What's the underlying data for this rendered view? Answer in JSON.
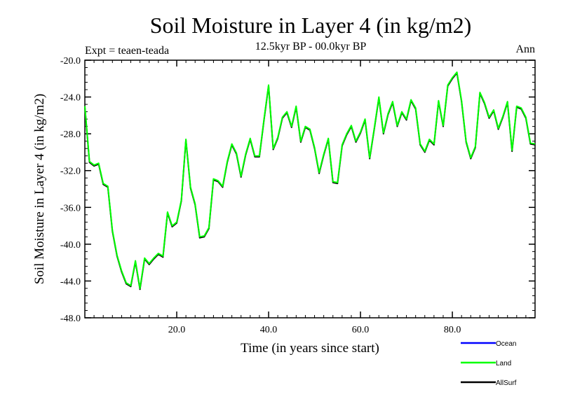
{
  "chart_data": {
    "type": "line",
    "title": "Soil Moisture in Layer 4 (in kg/m2)",
    "subtitle": "12.5kyr BP - 00.0kyr BP",
    "experiment": "Expt = teaen-teada",
    "season": "Ann",
    "xlabel": "Time (in years since start)",
    "ylabel": "Soil Moisture in Layer 4 (in kg/m2)",
    "xlim": [
      0,
      98
    ],
    "ylim": [
      -48,
      -20
    ],
    "xticks": [
      20,
      40,
      60,
      80
    ],
    "xtick_labels": [
      "20.0",
      "40.0",
      "60.0",
      "80.0"
    ],
    "yticks": [
      -20,
      -24,
      -28,
      -32,
      -36,
      -40,
      -44,
      -48
    ],
    "ytick_labels": [
      "-20.0",
      "-24.0",
      "-28.0",
      "-32.0",
      "-36.0",
      "-40.0",
      "-44.0",
      "-48.0"
    ],
    "legend": [
      {
        "name": "Ocean",
        "color": "#0000ff"
      },
      {
        "name": "Land",
        "color": "#00ff00"
      },
      {
        "name": "AllSurf",
        "color": "#000000"
      }
    ],
    "x": [
      0,
      1,
      2,
      3,
      4,
      5,
      6,
      7,
      8,
      9,
      10,
      11,
      12,
      13,
      14,
      15,
      16,
      17,
      18,
      19,
      20,
      21,
      22,
      23,
      24,
      25,
      26,
      27,
      28,
      29,
      30,
      31,
      32,
      33,
      34,
      35,
      36,
      37,
      38,
      39,
      40,
      41,
      42,
      43,
      44,
      45,
      46,
      47,
      48,
      49,
      50,
      51,
      52,
      53,
      54,
      55,
      56,
      57,
      58,
      59,
      60,
      61,
      62,
      63,
      64,
      65,
      66,
      67,
      68,
      69,
      70,
      71,
      72,
      73,
      74,
      75,
      76,
      77,
      78,
      79,
      80,
      81,
      82,
      83,
      84,
      85,
      86,
      87,
      88,
      89,
      90,
      91,
      92,
      93,
      94,
      95,
      96,
      97,
      98
    ],
    "series": [
      {
        "name": "Land",
        "color": "#00ff00",
        "values": [
          -25.0,
          -31.0,
          -31.4,
          -31.2,
          -33.4,
          -33.7,
          -38.5,
          -41.2,
          -42.9,
          -44.2,
          -44.5,
          -41.8,
          -44.8,
          -41.5,
          -42.1,
          -41.5,
          -41.0,
          -41.3,
          -36.5,
          -38.0,
          -37.6,
          -35.2,
          -28.6,
          -33.8,
          -35.6,
          -39.2,
          -39.1,
          -38.2,
          -32.9,
          -33.1,
          -33.7,
          -31.0,
          -29.1,
          -30.1,
          -32.6,
          -30.2,
          -28.5,
          -30.4,
          -30.4,
          -26.4,
          -22.7,
          -29.6,
          -28.4,
          -26.2,
          -25.6,
          -27.2,
          -25.0,
          -28.8,
          -27.2,
          -27.5,
          -29.5,
          -32.2,
          -30.2,
          -28.5,
          -33.2,
          -33.3,
          -29.2,
          -28.0,
          -27.1,
          -28.8,
          -27.8,
          -26.4,
          -30.6,
          -27.4,
          -24.0,
          -27.9,
          -25.8,
          -24.5,
          -27.1,
          -25.6,
          -26.4,
          -24.3,
          -25.2,
          -29.1,
          -29.9,
          -28.6,
          -29.1,
          -24.4,
          -27.1,
          -22.7,
          -21.9,
          -21.3,
          -24.4,
          -28.8,
          -30.6,
          -29.4,
          -23.5,
          -24.6,
          -26.2,
          -25.4,
          -27.4,
          -26.1,
          -24.5,
          -29.8,
          -25.0,
          -25.2,
          -26.2,
          -29.0,
          -29.1
        ]
      },
      {
        "name": "AllSurf",
        "color": "#000000",
        "values": [
          -25.1,
          -31.1,
          -31.5,
          -31.3,
          -33.5,
          -33.8,
          -38.6,
          -41.3,
          -43.0,
          -44.3,
          -44.6,
          -41.9,
          -44.9,
          -41.6,
          -42.2,
          -41.6,
          -41.1,
          -41.4,
          -36.6,
          -38.1,
          -37.7,
          -35.3,
          -28.7,
          -33.9,
          -35.7,
          -39.3,
          -39.2,
          -38.3,
          -33.0,
          -33.2,
          -33.8,
          -31.1,
          -29.2,
          -30.2,
          -32.7,
          -30.3,
          -28.6,
          -30.5,
          -30.5,
          -26.5,
          -22.8,
          -29.7,
          -28.5,
          -26.3,
          -25.7,
          -27.3,
          -25.1,
          -28.9,
          -27.3,
          -27.6,
          -29.6,
          -32.3,
          -30.3,
          -28.6,
          -33.3,
          -33.4,
          -29.3,
          -28.1,
          -27.2,
          -28.9,
          -27.9,
          -26.5,
          -30.7,
          -27.5,
          -24.1,
          -28.0,
          -25.9,
          -24.6,
          -27.2,
          -25.7,
          -26.5,
          -24.4,
          -25.3,
          -29.2,
          -30.0,
          -28.7,
          -29.2,
          -24.5,
          -27.2,
          -22.8,
          -22.0,
          -21.4,
          -24.5,
          -28.9,
          -30.7,
          -29.5,
          -23.6,
          -24.7,
          -26.3,
          -25.5,
          -27.5,
          -26.2,
          -24.6,
          -29.9,
          -25.1,
          -25.3,
          -26.3,
          -29.1,
          -29.2
        ]
      }
    ]
  }
}
